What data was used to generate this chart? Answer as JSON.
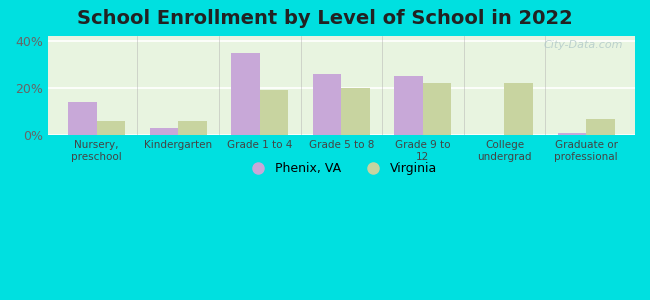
{
  "title": "School Enrollment by Level of School in 2022",
  "categories": [
    "Nursery,\npreschool",
    "Kindergarten",
    "Grade 1 to 4",
    "Grade 5 to 8",
    "Grade 9 to\n12",
    "College\nundergrad",
    "Graduate or\nprofessional"
  ],
  "phenix_values": [
    14,
    3,
    35,
    26,
    25,
    0,
    1
  ],
  "virginia_values": [
    6,
    6,
    19,
    20,
    22,
    22,
    7
  ],
  "phenix_color": "#c8a8d8",
  "virginia_color": "#c8d4a0",
  "background_outer": "#00e0e0",
  "background_plot": "#e8f4e0",
  "title_fontsize": 14,
  "ylabel_ticks": [
    0,
    20,
    40
  ],
  "ylabel_labels": [
    "0%",
    "20%",
    "40%"
  ],
  "ylim": [
    0,
    42
  ],
  "bar_width": 0.35,
  "legend_phenix": "Phenix, VA",
  "legend_virginia": "Virginia",
  "watermark_text": "City-Data.com"
}
